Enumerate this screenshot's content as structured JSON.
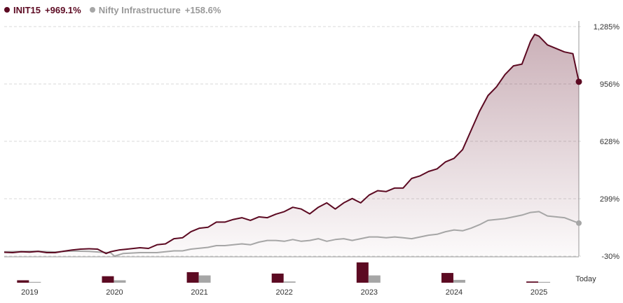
{
  "legend": {
    "s1": {
      "name": "INIT15",
      "value": "+969.1%"
    },
    "s2": {
      "name": "Nifty Infrastructure",
      "value": "+158.6%"
    }
  },
  "colors": {
    "primary": "#5c0a22",
    "secondary": "#a6a6a6",
    "grid": "#d9d9d9",
    "axis": "#999999"
  },
  "chart_data": {
    "type": "line",
    "y_axis": {
      "ticks": [
        -30,
        299,
        628,
        956,
        1285
      ],
      "tick_labels": [
        "-30%",
        "299%",
        "628%",
        "956%",
        "1,285%"
      ],
      "range": [
        -30,
        1285
      ],
      "position": "right"
    },
    "x_axis": {
      "tick_labels": [
        "2019",
        "2020",
        "2021",
        "2022",
        "2023",
        "2024",
        "2025",
        "Today"
      ],
      "years": [
        2019,
        2020,
        2021,
        2022,
        2023,
        2024,
        2025
      ]
    },
    "grid": true,
    "series": [
      {
        "name": "INIT15",
        "end_label": "+969.1%",
        "x": [
          2018.8,
          2018.9,
          2019.0,
          2019.1,
          2019.2,
          2019.3,
          2019.4,
          2019.5,
          2019.6,
          2019.7,
          2019.8,
          2019.9,
          2020.0,
          2020.05,
          2020.1,
          2020.15,
          2020.25,
          2020.4,
          2020.5,
          2020.6,
          2020.7,
          2020.8,
          2020.9,
          2021.0,
          2021.1,
          2021.2,
          2021.3,
          2021.4,
          2021.5,
          2021.6,
          2021.7,
          2021.8,
          2021.9,
          2022.0,
          2022.1,
          2022.2,
          2022.3,
          2022.4,
          2022.5,
          2022.6,
          2022.7,
          2022.8,
          2022.9,
          2023.0,
          2023.1,
          2023.2,
          2023.3,
          2023.4,
          2023.5,
          2023.6,
          2023.7,
          2023.8,
          2023.9,
          2024.0,
          2024.1,
          2024.2,
          2024.3,
          2024.4,
          2024.5,
          2024.6,
          2024.7,
          2024.8,
          2024.9,
          2025.0,
          2025.05,
          2025.1,
          2025.2,
          2025.3,
          2025.4,
          2025.5,
          2025.57
        ],
        "y": [
          -8,
          -10,
          -5,
          -7,
          -3,
          -10,
          -10,
          -2,
          5,
          10,
          12,
          10,
          -15,
          -5,
          0,
          5,
          10,
          18,
          14,
          35,
          40,
          70,
          75,
          110,
          130,
          135,
          165,
          165,
          180,
          190,
          175,
          195,
          190,
          210,
          225,
          250,
          240,
          212,
          250,
          275,
          240,
          275,
          300,
          275,
          320,
          345,
          340,
          360,
          360,
          415,
          430,
          455,
          470,
          510,
          530,
          580,
          690,
          800,
          890,
          940,
          1010,
          1060,
          1070,
          1200,
          1240,
          1230,
          1180,
          1160,
          1140,
          1130,
          969
        ]
      },
      {
        "name": "Nifty Infrastructure",
        "end_label": "+158.6%",
        "x": [
          2018.8,
          2019.0,
          2019.2,
          2019.4,
          2019.6,
          2019.8,
          2019.95,
          2020.05,
          2020.1,
          2020.2,
          2020.4,
          2020.6,
          2020.8,
          2020.9,
          2021.0,
          2021.1,
          2021.2,
          2021.3,
          2021.4,
          2021.5,
          2021.6,
          2021.7,
          2021.8,
          2021.9,
          2022.0,
          2022.1,
          2022.2,
          2022.3,
          2022.4,
          2022.5,
          2022.6,
          2022.7,
          2022.8,
          2022.9,
          2023.0,
          2023.1,
          2023.2,
          2023.3,
          2023.4,
          2023.5,
          2023.6,
          2023.7,
          2023.8,
          2023.9,
          2024.0,
          2024.1,
          2024.2,
          2024.3,
          2024.4,
          2024.5,
          2024.6,
          2024.7,
          2024.8,
          2024.9,
          2025.0,
          2025.1,
          2025.2,
          2025.3,
          2025.4,
          2025.57
        ],
        "y": [
          -5,
          -3,
          -2,
          -6,
          -1,
          -3,
          -8,
          -10,
          -30,
          -15,
          -10,
          -10,
          0,
          0,
          10,
          15,
          20,
          30,
          30,
          35,
          40,
          35,
          50,
          60,
          60,
          55,
          65,
          55,
          60,
          70,
          55,
          65,
          70,
          60,
          70,
          80,
          80,
          75,
          80,
          75,
          70,
          80,
          90,
          95,
          110,
          120,
          115,
          130,
          150,
          175,
          180,
          185,
          195,
          205,
          220,
          225,
          200,
          195,
          190,
          159
        ]
      }
    ],
    "annual_bars": [
      {
        "year": "2019",
        "INIT15": 12,
        "Nifty Infrastructure": 4
      },
      {
        "year": "2020",
        "INIT15": 32,
        "Nifty Infrastructure": 12
      },
      {
        "year": "2021",
        "INIT15": 52,
        "Nifty Infrastructure": 36
      },
      {
        "year": "2022",
        "INIT15": 45,
        "Nifty Infrastructure": 6
      },
      {
        "year": "2023",
        "INIT15": 100,
        "Nifty Infrastructure": 36
      },
      {
        "year": "2024",
        "INIT15": 48,
        "Nifty Infrastructure": 14
      },
      {
        "year": "2025",
        "INIT15": 6,
        "Nifty Infrastructure": 4
      }
    ]
  }
}
